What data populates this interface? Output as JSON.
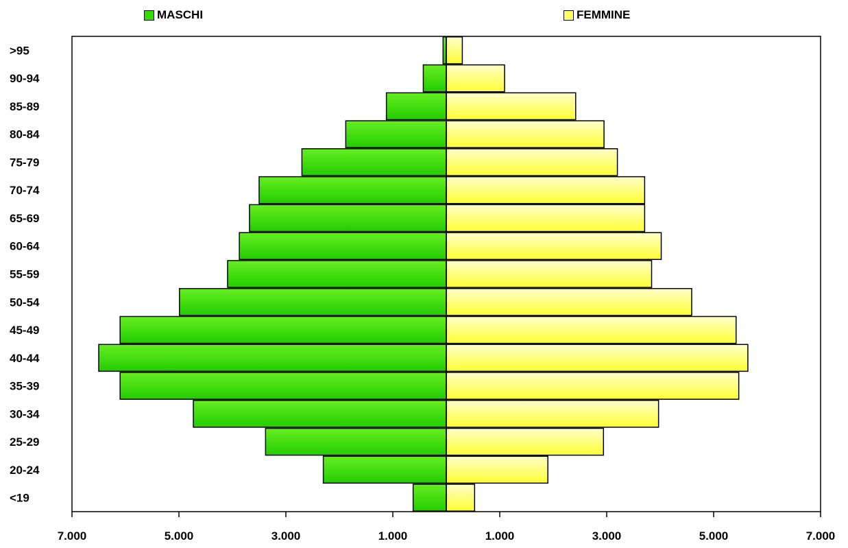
{
  "chart_data": {
    "type": "bar",
    "orientation": "horizontal",
    "categories": [
      ">95",
      "90-94",
      "85-89",
      "80-84",
      "75-79",
      "70-74",
      "65-69",
      "60-64",
      "55-59",
      "50-54",
      "45-49",
      "40-44",
      "35-39",
      "30-34",
      "25-29",
      "20-24",
      "<19"
    ],
    "series": [
      {
        "name": "MASCHI",
        "color": "#33dd00",
        "values": [
          60,
          430,
          1120,
          1880,
          2700,
          3500,
          3680,
          3870,
          4090,
          4990,
          6100,
          6500,
          6100,
          4730,
          3380,
          2300,
          620
        ]
      },
      {
        "name": "FEMMINE",
        "color": "#ffff66",
        "values": [
          300,
          1090,
          2420,
          2950,
          3200,
          3710,
          3710,
          4020,
          3840,
          4590,
          5420,
          5640,
          5470,
          3970,
          2940,
          1900,
          530
        ]
      }
    ],
    "x_tick_labels": [
      "7.000",
      "5.000",
      "3.000",
      "1.000",
      "1.000",
      "3.000",
      "5.000",
      "7.000"
    ],
    "xlim": [
      -7000,
      7000
    ],
    "legend_position": "top",
    "grid": false
  }
}
